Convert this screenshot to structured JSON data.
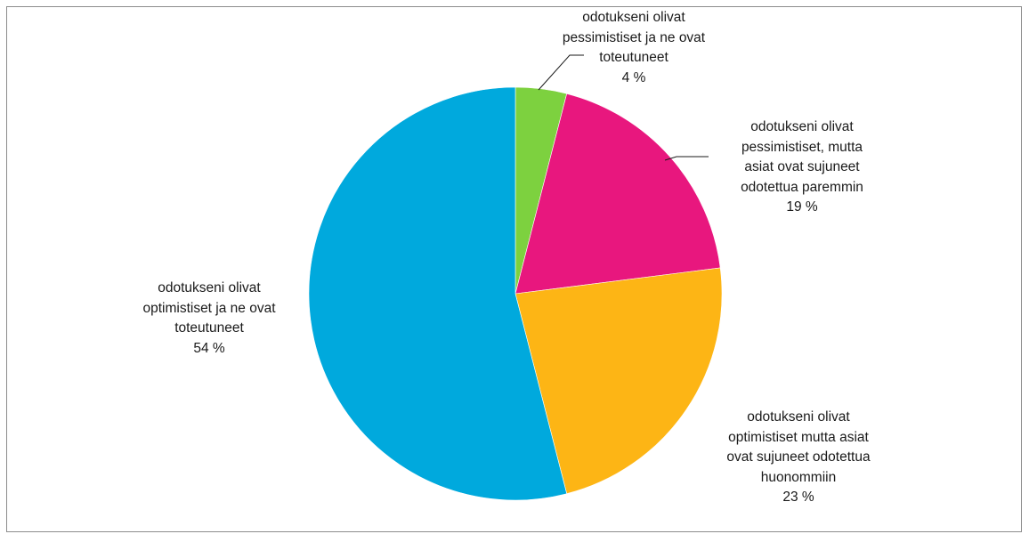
{
  "chart_data": {
    "type": "pie",
    "slices": [
      {
        "label_lines": [
          "odotukseni olivat",
          "pessimistiset ja ne ovat",
          "toteutuneet"
        ],
        "value": 4,
        "value_label": "4 %",
        "color": "#7dd13f"
      },
      {
        "label_lines": [
          "odotukseni olivat",
          "pessimistiset, mutta",
          "asiat ovat sujuneet",
          "odotettua paremmin"
        ],
        "value": 19,
        "value_label": "19 %",
        "color": "#e8177e"
      },
      {
        "label_lines": [
          "odotukseni olivat",
          "optimistiset mutta asiat",
          "ovat sujuneet odotettua",
          "huonommiin"
        ],
        "value": 23,
        "value_label": "23 %",
        "color": "#fdb515"
      },
      {
        "label_lines": [
          "odotukseni olivat",
          "optimistiset ja ne ovat",
          "toteutuneet"
        ],
        "value": 54,
        "value_label": "54 %",
        "color": "#00a9dd"
      }
    ],
    "start": "12 o'clock",
    "direction": "clockwise",
    "legend": "none"
  }
}
